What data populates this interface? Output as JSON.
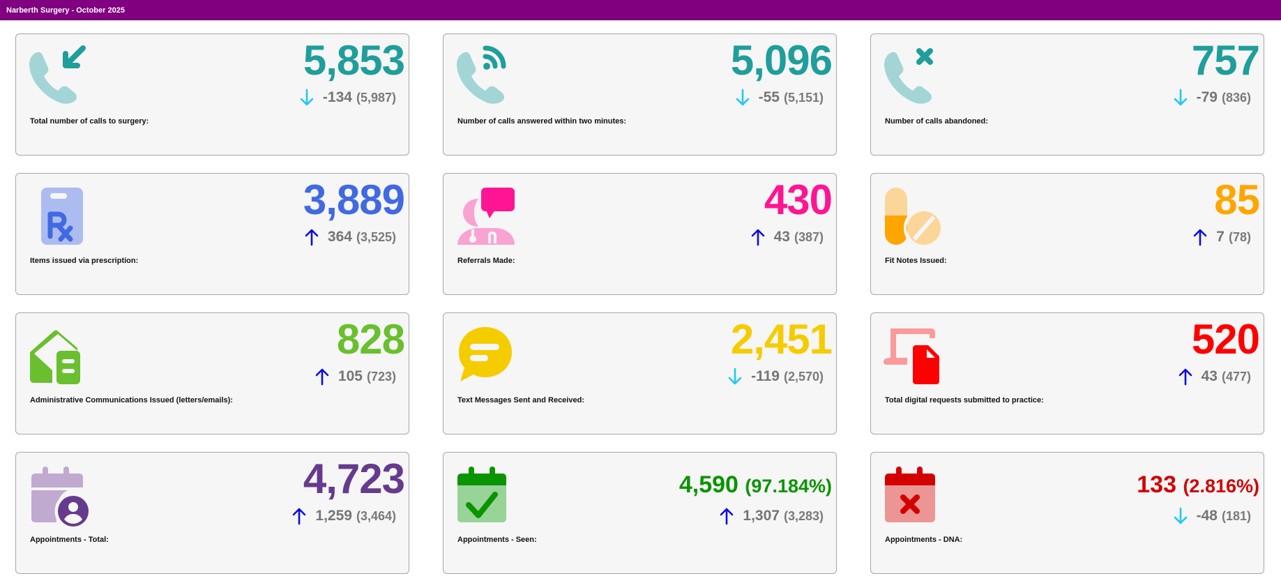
{
  "header": {
    "title": "Narberth Surgery - October 2025"
  },
  "colors": {
    "header_bg": "#800080",
    "delta_down_arrow": "#1ec8f0",
    "delta_up_arrow": "#0a0ae6",
    "delta_text": "#757575"
  },
  "cards": [
    {
      "label": "Total number of calls to surgery:",
      "value": "5,853",
      "percent": null,
      "trend": "down",
      "change": "-134",
      "previous": "(5,987)",
      "icon": "phone-incoming-icon",
      "color": "#1f9e9b",
      "icon_light": "#a3d5d6"
    },
    {
      "label": "Number of calls answered within two minutes:",
      "value": "5,096",
      "percent": null,
      "trend": "down",
      "change": "-55",
      "previous": "(5,151)",
      "icon": "phone-answered-icon",
      "color": "#1f9e9b",
      "icon_light": "#a3d5d6"
    },
    {
      "label": "Number of calls abandoned:",
      "value": "757",
      "percent": null,
      "trend": "down",
      "change": "-79",
      "previous": "(836)",
      "icon": "phone-missed-icon",
      "color": "#1f9e9b",
      "icon_light": "#a3d5d6"
    },
    {
      "label": "Items issued via prescription:",
      "value": "3,889",
      "percent": null,
      "trend": "up",
      "change": "364",
      "previous": "(3,525)",
      "icon": "prescription-icon",
      "color": "#4169e1",
      "icon_light": "#adbcf0"
    },
    {
      "label": "Referrals Made:",
      "value": "430",
      "percent": null,
      "trend": "up",
      "change": "43",
      "previous": "(387)",
      "icon": "doctor-referral-icon",
      "color": "#ff1493",
      "icon_light": "#f9a3d3"
    },
    {
      "label": "Fit Notes Issued:",
      "value": "85",
      "percent": null,
      "trend": "up",
      "change": "7",
      "previous": "(78)",
      "icon": "pills-icon",
      "color": "#ffa500",
      "icon_light": "#fbd698"
    },
    {
      "label": "Administrative Communications Issued (letters/emails):",
      "value": "828",
      "percent": null,
      "trend": "up",
      "change": "105",
      "previous": "(723)",
      "icon": "mail-letter-icon",
      "color": "#6abf2e",
      "icon_light": "#6abf2e"
    },
    {
      "label": "Text Messages Sent and Received:",
      "value": "2,451",
      "percent": null,
      "trend": "down",
      "change": "-119",
      "previous": "(2,570)",
      "icon": "chat-bubble-icon",
      "color": "#f5cc00",
      "icon_light": "#f5cc00"
    },
    {
      "label": "Total digital requests submitted to practice:",
      "value": "520",
      "percent": null,
      "trend": "up",
      "change": "43",
      "previous": "(477)",
      "icon": "digital-request-icon",
      "color": "#ff0000",
      "icon_light": "#fb9a9a"
    },
    {
      "label": "Appointments - Total:",
      "value": "4,723",
      "percent": null,
      "trend": "up",
      "change": "1,259",
      "previous": "(3,464)",
      "icon": "calendar-user-icon",
      "color": "#663a8c",
      "icon_light": "#c0aacf"
    },
    {
      "label": "Appointments - Seen:",
      "value": "4,590",
      "percent": "(97.184%)",
      "trend": "up",
      "change": "1,307",
      "previous": "(3,283)",
      "icon": "calendar-check-icon",
      "color": "#0a9400",
      "icon_light": "#98d398"
    },
    {
      "label": "Appointments - DNA:",
      "value": "133",
      "percent": "(2.816%)",
      "trend": "down",
      "change": "-48",
      "previous": "(181)",
      "icon": "calendar-cross-icon",
      "color": "#d40000",
      "icon_light": "#ec9595"
    }
  ]
}
